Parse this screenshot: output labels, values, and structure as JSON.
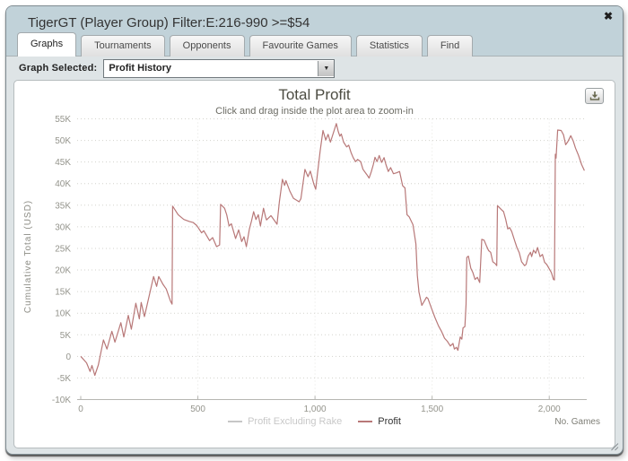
{
  "window": {
    "title": "TigerGT (Player Group) Filter:E:216-990 >=$54",
    "close_glyph": "✖"
  },
  "tabs": [
    {
      "label": "Graphs",
      "active": true
    },
    {
      "label": "Tournaments",
      "active": false
    },
    {
      "label": "Opponents",
      "active": false
    },
    {
      "label": "Favourite Games",
      "active": false
    },
    {
      "label": "Statistics",
      "active": false
    },
    {
      "label": "Find",
      "active": false
    }
  ],
  "controls": {
    "graph_selected_label": "Graph Selected:",
    "graph_selected_value": "Profit History",
    "dropdown_glyph": "▼"
  },
  "colors": {
    "header_bg": "#c1d2d9",
    "content_bg": "#dee4e6",
    "profit_line": "#b87878",
    "disabled_series": "#c6c6c6",
    "grid": "#d3d3cd"
  },
  "chart_data": {
    "type": "line",
    "title": "Total Profit",
    "subtitle": "Click and drag inside the plot area to zoom-in",
    "ylabel": "Cumulative Total (USD)",
    "xlabel": "No. Games",
    "xlim": [
      0,
      2160
    ],
    "ylim": [
      -10000,
      55000
    ],
    "grid": "dotted",
    "legend_position": "bottom-center",
    "xticks": [
      {
        "v": 0,
        "label": "0"
      },
      {
        "v": 500,
        "label": "500"
      },
      {
        "v": 1000,
        "label": "1,000"
      },
      {
        "v": 1500,
        "label": "1,500"
      },
      {
        "v": 2000,
        "label": "2,000"
      }
    ],
    "yticks": [
      {
        "v": 55000,
        "label": "55K"
      },
      {
        "v": 50000,
        "label": "50K"
      },
      {
        "v": 45000,
        "label": "45K"
      },
      {
        "v": 40000,
        "label": "40K"
      },
      {
        "v": 35000,
        "label": "35K"
      },
      {
        "v": 30000,
        "label": "30K"
      },
      {
        "v": 25000,
        "label": "25K"
      },
      {
        "v": 20000,
        "label": "20K"
      },
      {
        "v": 15000,
        "label": "15K"
      },
      {
        "v": 10000,
        "label": "10K"
      },
      {
        "v": 5000,
        "label": "5K"
      },
      {
        "v": 0,
        "label": "0"
      },
      {
        "v": -5000,
        "label": "-5K"
      },
      {
        "v": -10000,
        "label": "-10K"
      }
    ],
    "series": [
      {
        "name": "Profit Excluding Rake",
        "color": "#c6c6c6",
        "visible": false,
        "points": []
      },
      {
        "name": "Profit",
        "color": "#b87878",
        "visible": true,
        "points": [
          [
            0,
            0
          ],
          [
            25,
            -1500
          ],
          [
            40,
            -3500
          ],
          [
            48,
            -2100
          ],
          [
            60,
            -4400
          ],
          [
            75,
            -2000
          ],
          [
            97,
            3800
          ],
          [
            112,
            1700
          ],
          [
            133,
            5800
          ],
          [
            146,
            3300
          ],
          [
            171,
            7800
          ],
          [
            184,
            4500
          ],
          [
            203,
            9500
          ],
          [
            216,
            6300
          ],
          [
            235,
            12300
          ],
          [
            250,
            8700
          ],
          [
            258,
            12500
          ],
          [
            272,
            9200
          ],
          [
            311,
            18500
          ],
          [
            324,
            16200
          ],
          [
            333,
            18500
          ],
          [
            352,
            16600
          ],
          [
            365,
            15600
          ],
          [
            383,
            12800
          ],
          [
            390,
            12100
          ],
          [
            392,
            34800
          ],
          [
            416,
            32800
          ],
          [
            440,
            31700
          ],
          [
            465,
            31200
          ],
          [
            480,
            31000
          ],
          [
            495,
            30300
          ],
          [
            516,
            28600
          ],
          [
            525,
            29100
          ],
          [
            550,
            26800
          ],
          [
            563,
            27500
          ],
          [
            580,
            25400
          ],
          [
            593,
            25800
          ],
          [
            597,
            35200
          ],
          [
            614,
            34300
          ],
          [
            623,
            32800
          ],
          [
            633,
            30200
          ],
          [
            643,
            30700
          ],
          [
            661,
            27300
          ],
          [
            674,
            29300
          ],
          [
            687,
            26600
          ],
          [
            697,
            27700
          ],
          [
            707,
            25400
          ],
          [
            720,
            29500
          ],
          [
            729,
            31400
          ],
          [
            738,
            33500
          ],
          [
            748,
            31700
          ],
          [
            758,
            32800
          ],
          [
            767,
            30200
          ],
          [
            780,
            34300
          ],
          [
            789,
            32300
          ],
          [
            793,
            31600
          ],
          [
            812,
            32600
          ],
          [
            838,
            30600
          ],
          [
            848,
            35800
          ],
          [
            861,
            41000
          ],
          [
            870,
            39600
          ],
          [
            876,
            40700
          ],
          [
            893,
            38200
          ],
          [
            908,
            36600
          ],
          [
            920,
            36200
          ],
          [
            932,
            35800
          ],
          [
            940,
            36500
          ],
          [
            957,
            43300
          ],
          [
            970,
            41600
          ],
          [
            980,
            42900
          ],
          [
            995,
            39900
          ],
          [
            1003,
            38700
          ],
          [
            1010,
            42000
          ],
          [
            1022,
            47600
          ],
          [
            1034,
            52300
          ],
          [
            1046,
            50100
          ],
          [
            1056,
            51400
          ],
          [
            1066,
            49600
          ],
          [
            1091,
            53900
          ],
          [
            1099,
            52100
          ],
          [
            1106,
            51000
          ],
          [
            1112,
            51500
          ],
          [
            1122,
            49600
          ],
          [
            1135,
            48500
          ],
          [
            1144,
            48900
          ],
          [
            1154,
            47200
          ],
          [
            1163,
            46000
          ],
          [
            1173,
            45100
          ],
          [
            1182,
            45600
          ],
          [
            1195,
            45100
          ],
          [
            1205,
            43300
          ],
          [
            1221,
            42100
          ],
          [
            1231,
            41300
          ],
          [
            1240,
            42700
          ],
          [
            1249,
            44400
          ],
          [
            1256,
            46100
          ],
          [
            1265,
            45100
          ],
          [
            1274,
            46500
          ],
          [
            1284,
            44900
          ],
          [
            1295,
            46000
          ],
          [
            1303,
            44400
          ],
          [
            1313,
            42800
          ],
          [
            1323,
            43700
          ],
          [
            1335,
            42300
          ],
          [
            1348,
            42500
          ],
          [
            1361,
            42800
          ],
          [
            1374,
            39500
          ],
          [
            1384,
            39000
          ],
          [
            1393,
            32800
          ],
          [
            1402,
            32300
          ],
          [
            1418,
            30500
          ],
          [
            1431,
            26000
          ],
          [
            1437,
            18700
          ],
          [
            1444,
            14900
          ],
          [
            1456,
            11800
          ],
          [
            1476,
            13700
          ],
          [
            1482,
            13400
          ],
          [
            1499,
            10900
          ],
          [
            1512,
            9000
          ],
          [
            1527,
            7100
          ],
          [
            1540,
            5800
          ],
          [
            1553,
            4200
          ],
          [
            1565,
            3500
          ],
          [
            1578,
            2400
          ],
          [
            1589,
            3000
          ],
          [
            1595,
            1700
          ],
          [
            1604,
            2100
          ],
          [
            1610,
            1400
          ],
          [
            1620,
            4500
          ],
          [
            1627,
            4000
          ],
          [
            1632,
            6600
          ],
          [
            1640,
            6900
          ],
          [
            1645,
            12100
          ],
          [
            1648,
            22900
          ],
          [
            1655,
            23200
          ],
          [
            1665,
            20400
          ],
          [
            1674,
            19400
          ],
          [
            1683,
            17800
          ],
          [
            1693,
            18300
          ],
          [
            1703,
            17100
          ],
          [
            1712,
            27100
          ],
          [
            1722,
            26900
          ],
          [
            1731,
            25700
          ],
          [
            1741,
            24500
          ],
          [
            1750,
            24100
          ],
          [
            1759,
            21900
          ],
          [
            1769,
            21500
          ],
          [
            1776,
            21000
          ],
          [
            1779,
            34900
          ],
          [
            1795,
            34000
          ],
          [
            1805,
            33500
          ],
          [
            1814,
            31700
          ],
          [
            1823,
            29500
          ],
          [
            1831,
            29800
          ],
          [
            1840,
            28900
          ],
          [
            1853,
            26700
          ],
          [
            1862,
            25200
          ],
          [
            1872,
            24000
          ],
          [
            1882,
            21900
          ],
          [
            1895,
            21000
          ],
          [
            1901,
            21300
          ],
          [
            1910,
            23200
          ],
          [
            1920,
            24100
          ],
          [
            1925,
            23100
          ],
          [
            1933,
            24600
          ],
          [
            1942,
            23900
          ],
          [
            1950,
            25200
          ],
          [
            1961,
            23100
          ],
          [
            1971,
            23600
          ],
          [
            1980,
            21800
          ],
          [
            1989,
            21300
          ],
          [
            2002,
            20100
          ],
          [
            2009,
            19400
          ],
          [
            2018,
            17800
          ],
          [
            2022,
            17700
          ],
          [
            2026,
            46800
          ],
          [
            2029,
            45900
          ],
          [
            2036,
            52400
          ],
          [
            2051,
            52300
          ],
          [
            2061,
            51300
          ],
          [
            2070,
            49000
          ],
          [
            2079,
            49700
          ],
          [
            2092,
            51100
          ],
          [
            2102,
            49900
          ],
          [
            2112,
            48200
          ],
          [
            2125,
            46500
          ],
          [
            2138,
            44400
          ],
          [
            2150,
            43000
          ]
        ]
      }
    ]
  }
}
